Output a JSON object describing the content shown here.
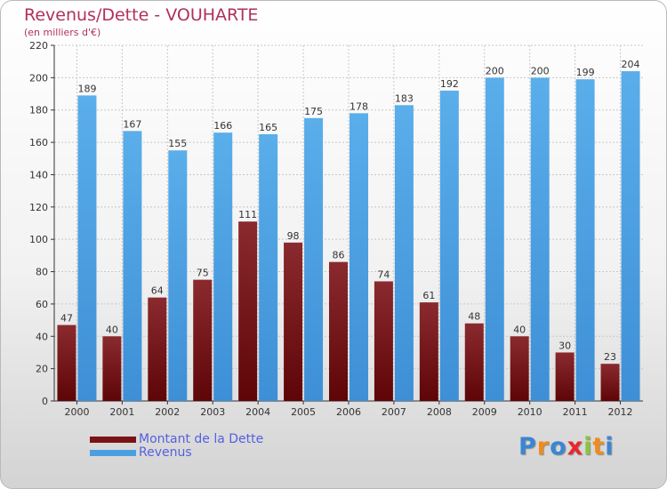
{
  "chart_data": {
    "type": "bar",
    "title": "Revenus/Dette - VOUHARTE",
    "subtitle": "(en milliers d'€)",
    "categories": [
      "2000",
      "2001",
      "2002",
      "2003",
      "2004",
      "2005",
      "2006",
      "2007",
      "2008",
      "2009",
      "2010",
      "2011",
      "2012"
    ],
    "series": [
      {
        "name": "Montant de la Dette",
        "color": "#7a1216",
        "values": [
          47,
          40,
          64,
          75,
          111,
          98,
          86,
          74,
          61,
          48,
          40,
          30,
          23
        ]
      },
      {
        "name": "Revenus",
        "color": "#4a9fe2",
        "values": [
          189,
          167,
          155,
          166,
          165,
          175,
          178,
          183,
          192,
          200,
          200,
          199,
          204
        ]
      }
    ],
    "ylim": [
      0,
      220
    ],
    "yticks": [
      0,
      20,
      40,
      60,
      80,
      100,
      120,
      140,
      160,
      180,
      200,
      220
    ],
    "grid": true,
    "legend_position": "bottom-left"
  },
  "logo": {
    "letters": [
      "P",
      "r",
      "o",
      "x",
      "i",
      "t",
      "i"
    ],
    "colors": [
      "#3a86d4",
      "#f08c1e",
      "#3a86d4",
      "#e8282c",
      "#8bc43f",
      "#f08c1e",
      "#3a86d4"
    ]
  }
}
